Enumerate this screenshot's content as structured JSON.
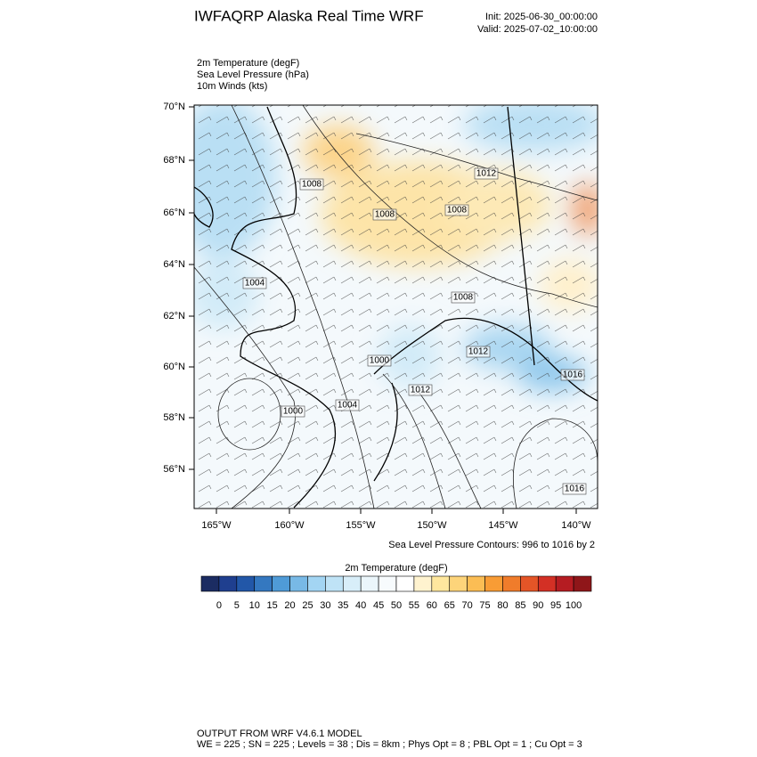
{
  "header": {
    "title": "IWFAQRP Alaska Real Time WRF",
    "init": "Init: 2025-06-30_00:00:00",
    "valid": "Valid: 2025-07-02_10:00:00"
  },
  "fields": [
    "2m Temperature   (degF)",
    "Sea Level Pressure   (hPa)",
    "10m Winds   (kts)"
  ],
  "map": {
    "lat_labels": [
      "70°N",
      "68°N",
      "66°N",
      "64°N",
      "62°N",
      "60°N",
      "58°N",
      "56°N"
    ],
    "lon_labels": [
      "165°W",
      "160°W",
      "155°W",
      "150°W",
      "145°W",
      "140°W"
    ],
    "contour_labels": [
      "1008",
      "1012",
      "1008",
      "1008",
      "1004",
      "1008",
      "1000",
      "1012",
      "1012",
      "1016",
      "1000",
      "1004",
      "1016"
    ]
  },
  "contour_note": "Sea Level Pressure Contours: 996 to 1016 by 2",
  "colorbar": {
    "title": "2m Temperature  (degF)",
    "labels": [
      0,
      5,
      10,
      15,
      20,
      25,
      30,
      35,
      40,
      45,
      50,
      55,
      60,
      65,
      70,
      75,
      80,
      85,
      90,
      95,
      100
    ],
    "colors": [
      "#1b2c62",
      "#1f3f8f",
      "#2257a8",
      "#3478c0",
      "#4f9bd7",
      "#78b9e6",
      "#a3d5f3",
      "#bfe3f6",
      "#d8eef9",
      "#ebf6fb",
      "#f7fbfd",
      "#ffffff",
      "#fff3cf",
      "#ffe79e",
      "#fdd47a",
      "#fbbd54",
      "#f89c35",
      "#f07c2b",
      "#e45527",
      "#d33025",
      "#b51c22",
      "#8f1619"
    ]
  },
  "footer": {
    "line1": "OUTPUT FROM WRF V4.6.1 MODEL",
    "line2": "WE = 225 ; SN = 225 ; Levels = 38 ; Dis = 8km ; Phys Opt = 8 ; PBL Opt = 1 ; Cu Opt = 3"
  }
}
